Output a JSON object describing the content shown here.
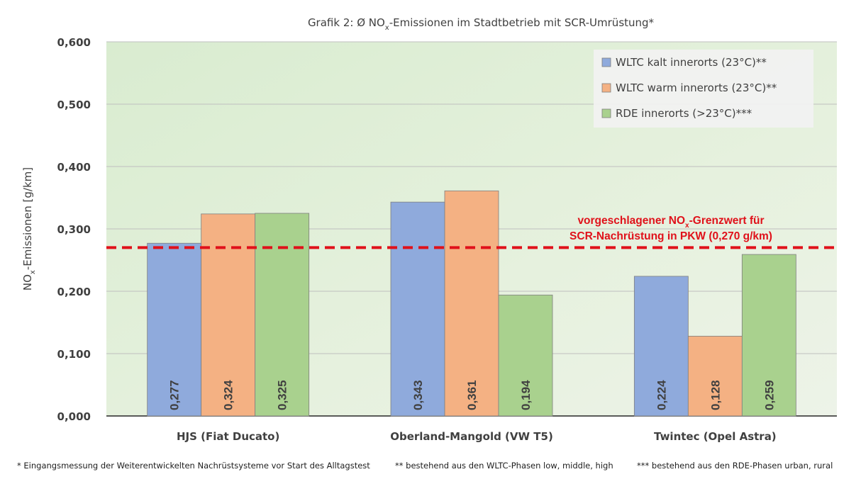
{
  "chart_data": {
    "type": "bar",
    "title": {
      "prefix": "Grafik 2: Ø NO",
      "sub": "x",
      "suffix": "-Emissionen  im Stadtbetrieb  mit SCR-Umrüstung*"
    },
    "ylabel": {
      "prefix": "NO",
      "sub": "x",
      "suffix": "-Emissionen  [g/km]"
    },
    "ylim": [
      0,
      0.6
    ],
    "yticks": [
      0,
      0.1,
      0.2,
      0.3,
      0.4,
      0.5,
      0.6
    ],
    "ytick_labels": [
      "0,000",
      "0,100",
      "0,200",
      "0,300",
      "0,400",
      "0,500",
      "0,600"
    ],
    "categories": [
      "HJS (Fiat Ducato)",
      "Oberland-Mangold (VW T5)",
      "Twintec (Opel Astra)"
    ],
    "series": [
      {
        "name": "WLTC kalt innerorts (23°C)**",
        "color": "#8faadc",
        "values": [
          0.277,
          0.343,
          0.224
        ],
        "labels": [
          "0,277",
          "0,343",
          "0,224"
        ]
      },
      {
        "name": "WLTC warm innerorts (23°C)**",
        "color": "#f4b183",
        "values": [
          0.324,
          0.361,
          0.128
        ],
        "labels": [
          "0,324",
          "0,361",
          "0,128"
        ]
      },
      {
        "name": "RDE innerorts (>23°C)***",
        "color": "#a9d18e",
        "values": [
          0.325,
          0.194,
          0.259
        ],
        "labels": [
          "0,325",
          "0,194",
          "0,259"
        ]
      }
    ],
    "limit_line": {
      "value": 0.27,
      "color": "#e0111a",
      "label_line1_prefix": "vorgeschlagener NO",
      "label_line1_sub": "x",
      "label_line1_suffix": "-Grenzwert für",
      "label_line2": "SCR-Nachrüstung in PKW (0,270 g/km)"
    },
    "grid": true,
    "legend_position": "top-right",
    "plot_background": "#e2efd9",
    "footnotes": [
      "* Eingangsmessung  der Weiterentwickelten Nachrüstsysteme vor Start des Alltagstest",
      "** bestehend aus den WLTC-Phasen low, middle, high",
      "*** bestehend aus den RDE-Phasen urban, rural"
    ]
  }
}
